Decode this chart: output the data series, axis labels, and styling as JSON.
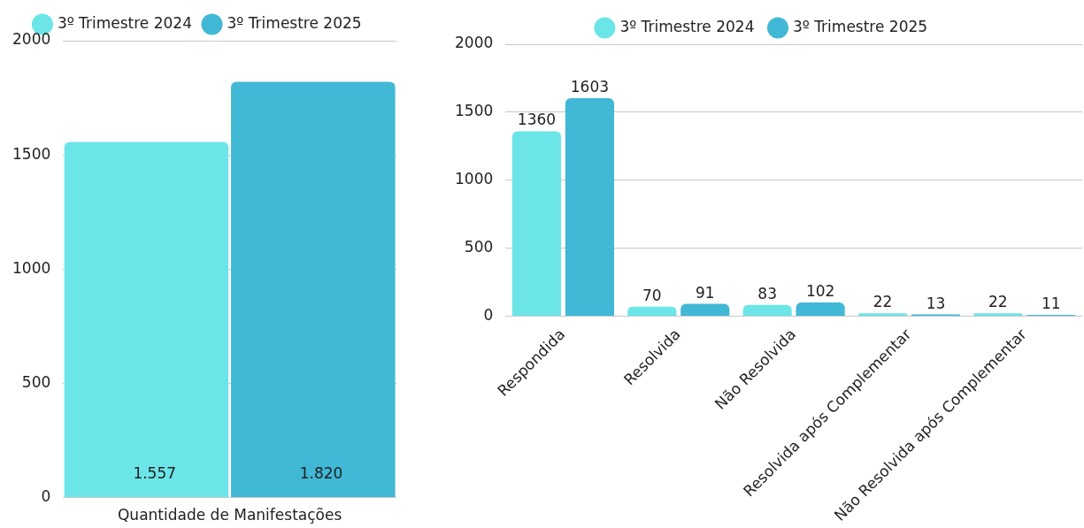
{
  "chart_data": [
    {
      "type": "bar",
      "categories": [
        "Quantidade de Manifestações"
      ],
      "series": [
        {
          "name": "3º Trimestre 2024",
          "color": "#6ce5e8",
          "values": [
            1557
          ],
          "value_labels": [
            "1.557"
          ]
        },
        {
          "name": "3º Trimestre 2025",
          "color": "#41b8d5",
          "values": [
            1820
          ],
          "value_labels": [
            "1.820"
          ]
        }
      ],
      "ylim": [
        0,
        2000
      ],
      "yticks": [
        0,
        500,
        1000,
        1500,
        2000
      ],
      "grid": "y",
      "legend": "top"
    },
    {
      "type": "bar",
      "categories": [
        "Respondida",
        "Resolvida",
        "Não Resolvida",
        "Resolvida após Complementar",
        "Não Resolvida após Complementar"
      ],
      "series": [
        {
          "name": "3º Trimestre 2024",
          "color": "#6ce5e8",
          "values": [
            1360,
            70,
            83,
            22,
            22
          ]
        },
        {
          "name": "3º Trimestre 2025",
          "color": "#41b8d5",
          "values": [
            1603,
            91,
            102,
            13,
            11
          ]
        }
      ],
      "ylim": [
        0,
        2000
      ],
      "yticks": [
        0,
        500,
        1000,
        1500,
        2000
      ],
      "grid": "y",
      "legend": "top",
      "data_labels": true
    }
  ]
}
